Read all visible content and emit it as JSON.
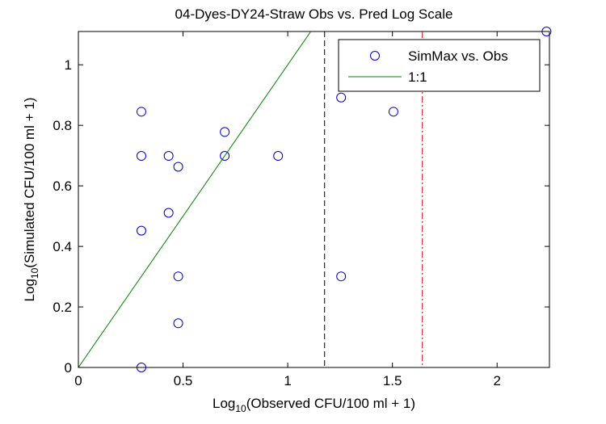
{
  "chart_data": {
    "type": "scatter",
    "title": "04-Dyes-DY24-Straw Obs vs. Pred Log Scale",
    "xlabel": {
      "prefix": "Log",
      "sub": "10",
      "suffix": "(Observed CFU/100 ml + 1)"
    },
    "ylabel": {
      "prefix": "Log",
      "sub": "10",
      "suffix": "(Simulated CFU/100 ml + 1)"
    },
    "xlim": [
      0,
      2.25
    ],
    "ylim": [
      0,
      1.11
    ],
    "xticks": [
      0,
      0.5,
      1,
      1.5,
      2
    ],
    "xtick_labels": [
      "0",
      "0.5",
      "1",
      "1.5",
      "2"
    ],
    "yticks": [
      0,
      0.2,
      0.4,
      0.6,
      0.8,
      1
    ],
    "ytick_labels": [
      "0",
      "0.2",
      "0.4",
      "0.6",
      "0.8",
      "1"
    ],
    "grid": false,
    "legend_position": "top-right",
    "series": [
      {
        "name": "SimMax vs. Obs",
        "kind": "scatter",
        "marker": "circle",
        "color": "#0000cc",
        "points": [
          [
            0.301,
            0.845
          ],
          [
            0.301,
            0.699
          ],
          [
            0.301,
            0.452
          ],
          [
            0.301,
            0.0
          ],
          [
            0.431,
            0.699
          ],
          [
            0.431,
            0.511
          ],
          [
            0.477,
            0.663
          ],
          [
            0.477,
            0.301
          ],
          [
            0.477,
            0.146
          ],
          [
            0.699,
            0.778
          ],
          [
            0.699,
            0.699
          ],
          [
            0.954,
            0.699
          ],
          [
            1.255,
            0.892
          ],
          [
            1.255,
            0.301
          ],
          [
            1.505,
            0.845
          ],
          [
            2.236,
            1.11
          ]
        ]
      },
      {
        "name": "1:1",
        "kind": "line",
        "color": "#008000",
        "points": [
          [
            0,
            0
          ],
          [
            1.11,
            1.11
          ]
        ]
      }
    ],
    "reference_lines": [
      {
        "x": 1.176,
        "color": "#000000",
        "style": "dashed"
      },
      {
        "x": 1.643,
        "color": "#cc0000",
        "style": "dashdot"
      }
    ]
  }
}
